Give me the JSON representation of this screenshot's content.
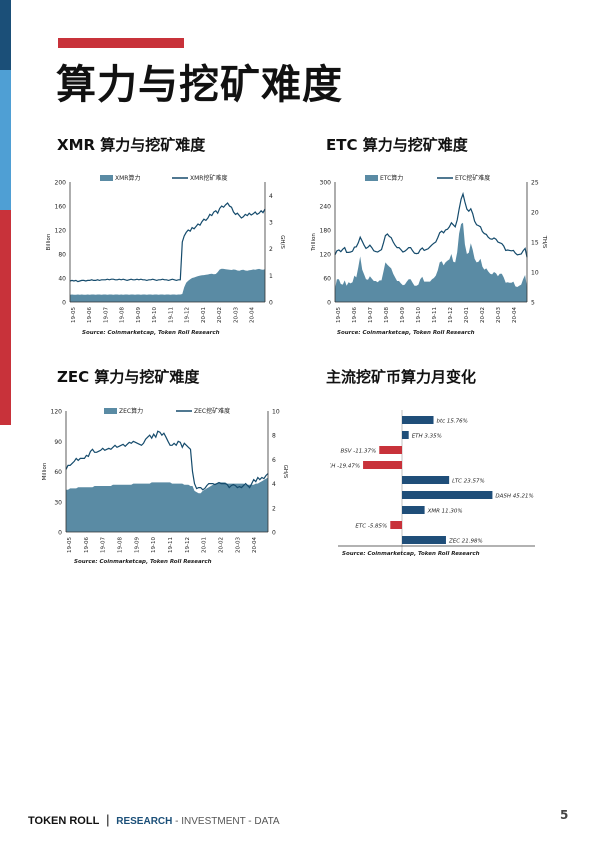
{
  "page": {
    "title": "算力与挖矿难度",
    "page_number": "5"
  },
  "colors": {
    "accent_red": "#c8323a",
    "side_navy": "#1b4f78",
    "side_blue": "#4f9fd4",
    "fill": "#5a8ba4",
    "line": "#154b6c"
  },
  "footer": {
    "brand": "TOKEN ROLL",
    "divider": "|",
    "research": "RESEARCH",
    "rest": " - INVESTMENT - DATA"
  },
  "chart_data": [
    {
      "id": "xmr",
      "type": "area",
      "title": "XMR 算力与挖矿难度",
      "ylabel": "Billion",
      "y2label": "GH/S",
      "ylim": [
        0,
        200
      ],
      "yticks": [
        0,
        40,
        80,
        120,
        160,
        200
      ],
      "y2lim": [
        0,
        4.5
      ],
      "y2ticks": [
        0,
        1,
        2,
        3,
        4
      ],
      "xticks": [
        "19-05",
        "19-06",
        "19-07",
        "19-08",
        "19-09",
        "19-10",
        "19-11",
        "19-12",
        "20-01",
        "20-02",
        "20-03",
        "20-04"
      ],
      "series": [
        {
          "name": "XMR算力",
          "type": "area",
          "axis": "right",
          "values": [
            0.27,
            0.28,
            0.27,
            0.27,
            0.28,
            0.27,
            0.28,
            0.27,
            0.27,
            0.28,
            0.27,
            0.28,
            0.28,
            0.27,
            0.28,
            0.28,
            0.27,
            0.28,
            0.28,
            0.27,
            0.28,
            0.28,
            0.27,
            0.28,
            0.28,
            0.27,
            0.28,
            0.27,
            0.28,
            0.28,
            0.27,
            0.28,
            0.28,
            0.27,
            0.28,
            0.28,
            0.27,
            0.28,
            0.28,
            0.27,
            0.28,
            0.28,
            0.27,
            0.28,
            0.28,
            0.27,
            0.28,
            0.28,
            0.27,
            0.28,
            0.28,
            0.27,
            0.28,
            0.28,
            0.27,
            0.28,
            0.28,
            0.3,
            0.55,
            0.72,
            0.8,
            0.85,
            0.9,
            0.92,
            0.95,
            0.97,
            0.99,
            1.0,
            1.01,
            1.02,
            1.03,
            1.05,
            1.06,
            1.04,
            1.05,
            1.12,
            1.22,
            1.25,
            1.24,
            1.23,
            1.22,
            1.21,
            1.2,
            1.22,
            1.21,
            1.18,
            1.17,
            1.2,
            1.21,
            1.18,
            1.17,
            1.19,
            1.2,
            1.22,
            1.21,
            1.23,
            1.24,
            1.22,
            1.21,
            1.23
          ]
        },
        {
          "name": "XMR挖矿难度",
          "type": "line",
          "axis": "left",
          "values": [
            35,
            36,
            35,
            36,
            34,
            35,
            36,
            36,
            35,
            36,
            36,
            37,
            36,
            36,
            37,
            36,
            37,
            37,
            37,
            38,
            37,
            38,
            38,
            37,
            37,
            38,
            37,
            38,
            37,
            36,
            37,
            38,
            37,
            37,
            38,
            37,
            38,
            37,
            37,
            36,
            37,
            37,
            38,
            37,
            36,
            37,
            37,
            38,
            37,
            37,
            36,
            37,
            38,
            37,
            36,
            37,
            37,
            100,
            110,
            116,
            120,
            118,
            124,
            122,
            126,
            130,
            128,
            134,
            138,
            136,
            140,
            146,
            144,
            150,
            152,
            148,
            156,
            160,
            158,
            162,
            165,
            160,
            158,
            150,
            146,
            148,
            144,
            140,
            142,
            146,
            144,
            148,
            145,
            147,
            150,
            146,
            148,
            152,
            149,
            155
          ]
        }
      ]
    },
    {
      "id": "etc",
      "type": "area",
      "title": "ETC 算力与挖矿难度",
      "ylabel": "Trillion",
      "y2label": "TH/S",
      "ylim": [
        0,
        300
      ],
      "yticks": [
        0,
        60,
        120,
        180,
        240,
        300
      ],
      "y2lim": [
        5,
        25
      ],
      "y2ticks": [
        5,
        10,
        15,
        20,
        25
      ],
      "xticks": [
        "19-05",
        "19-06",
        "19-07",
        "19-08",
        "19-09",
        "19-10",
        "19-11",
        "19-12",
        "20-01",
        "20-02",
        "20-03",
        "20-04"
      ],
      "series": [
        {
          "name": "ETC算力",
          "type": "area",
          "axis": "right",
          "values": [
            7.2,
            8.8,
            8.8,
            8.0,
            7.9,
            8.6,
            7.7,
            8.3,
            8.1,
            8.3,
            9.4,
            9.1,
            10.8,
            12.6,
            10.4,
            9.6,
            8.8,
            8.7,
            9.3,
            8.9,
            8.5,
            8.5,
            8.3,
            8.6,
            8.6,
            10.1,
            11.6,
            11.2,
            10.9,
            10.6,
            9.7,
            9.1,
            8.5,
            8.5,
            8.1,
            7.8,
            7.9,
            8.4,
            8.8,
            8.8,
            8.2,
            7.7,
            7.7,
            7.9,
            8.8,
            9.2,
            8.4,
            8.4,
            8.4,
            8.4,
            8.8,
            9.0,
            9.4,
            10.3,
            11.6,
            11.8,
            11.1,
            11.6,
            11.9,
            12.1,
            13.0,
            11.7,
            11.6,
            13.3,
            16.4,
            18.0,
            18.2,
            14.6,
            13.0,
            13.2,
            14.8,
            13.7,
            12.2,
            11.6,
            11.7,
            12.2,
            10.9,
            10.4,
            10.6,
            10.1,
            9.7,
            9.6,
            10.0,
            9.8,
            9.3,
            9.7,
            9.7,
            9.1,
            8.2,
            8.3,
            8.2,
            8.2,
            8.4,
            7.6,
            7.5,
            7.7,
            7.9,
            8.8,
            9.5,
            7.5
          ]
        },
        {
          "name": "ETC挖矿难度",
          "type": "line",
          "axis": "left",
          "values": [
            118,
            128,
            130,
            126,
            132,
            136,
            124,
            124,
            125,
            127,
            137,
            138,
            148,
            162,
            152,
            142,
            134,
            137,
            142,
            136,
            128,
            126,
            125,
            128,
            131,
            148,
            166,
            170,
            164,
            161,
            150,
            142,
            136,
            136,
            131,
            125,
            127,
            131,
            136,
            136,
            128,
            122,
            121,
            122,
            131,
            135,
            129,
            131,
            133,
            138,
            143,
            147,
            150,
            161,
            173,
            177,
            173,
            180,
            182,
            188,
            198,
            193,
            188,
            205,
            232,
            257,
            270,
            250,
            232,
            227,
            233,
            221,
            202,
            193,
            191,
            188,
            176,
            171,
            169,
            162,
            158,
            157,
            160,
            157,
            150,
            148,
            146,
            140,
            129,
            130,
            129,
            128,
            129,
            122,
            118,
            119,
            120,
            128,
            134,
            112
          ]
        }
      ]
    },
    {
      "id": "zec",
      "type": "area",
      "title": "ZEC 算力与挖矿难度",
      "ylabel": "Million",
      "y2label": "GH/S",
      "ylim": [
        0,
        120
      ],
      "yticks": [
        0,
        30,
        60,
        90,
        120
      ],
      "y2lim": [
        0,
        10
      ],
      "y2ticks": [
        0,
        2,
        4,
        6,
        8,
        10
      ],
      "xticks": [
        "19-05",
        "19-06",
        "19-07",
        "19-08",
        "19-09",
        "19-10",
        "19-11",
        "19-12",
        "20-01",
        "20-02",
        "20-03",
        "20-04"
      ],
      "series": [
        {
          "name": "ZEC算力",
          "type": "area",
          "axis": "right",
          "values": [
            3.5,
            3.5,
            3.6,
            3.6,
            3.6,
            3.6,
            3.7,
            3.7,
            3.7,
            3.7,
            3.7,
            3.7,
            3.7,
            3.7,
            3.8,
            3.8,
            3.8,
            3.8,
            3.8,
            3.8,
            3.8,
            3.8,
            3.8,
            3.9,
            3.9,
            3.9,
            3.9,
            3.9,
            3.9,
            3.9,
            3.9,
            3.9,
            3.9,
            4.0,
            4.0,
            4.0,
            4.0,
            4.0,
            4.0,
            4.0,
            4.0,
            4.0,
            4.1,
            4.1,
            4.1,
            4.1,
            4.1,
            4.1,
            4.1,
            4.1,
            4.1,
            4.1,
            4.0,
            4.0,
            4.0,
            4.0,
            4.0,
            4.0,
            3.9,
            3.9,
            3.9,
            3.8,
            3.8,
            3.4,
            3.3,
            3.2,
            3.2,
            3.4,
            3.5,
            3.6,
            3.7,
            3.8,
            3.9,
            4.0,
            4.0,
            4.1,
            4.1,
            4.1,
            4.1,
            4.0,
            4.0,
            4.0,
            4.0,
            4.0,
            4.0,
            4.0,
            4.0,
            4.0,
            3.9,
            3.9,
            3.9,
            3.9,
            3.9,
            4.0,
            4.0,
            4.1,
            4.2,
            4.3,
            4.4,
            4.5
          ]
        },
        {
          "name": "ZEC挖矿难度",
          "type": "line",
          "axis": "left",
          "values": [
            62,
            66,
            66,
            68,
            70,
            73,
            71,
            73,
            73,
            73,
            76,
            75,
            80,
            82,
            79,
            79,
            80,
            81,
            83,
            81,
            82,
            83,
            82,
            84,
            86,
            84,
            85,
            86,
            87,
            85,
            87,
            89,
            88,
            90,
            89,
            88,
            87,
            86,
            88,
            92,
            94,
            96,
            93,
            97,
            94,
            100,
            99,
            96,
            98,
            94,
            90,
            86,
            86,
            88,
            86,
            90,
            89,
            84,
            88,
            86,
            84,
            82,
            60,
            48,
            43,
            44,
            44,
            42,
            43,
            46,
            48,
            48,
            48,
            47,
            48,
            49,
            48,
            48,
            48,
            47,
            44,
            46,
            47,
            46,
            44,
            45,
            44,
            46,
            48,
            46,
            44,
            48,
            52,
            50,
            54,
            52,
            54,
            53,
            56,
            58
          ]
        }
      ]
    },
    {
      "id": "monthly",
      "type": "bar",
      "title": "主流挖矿币算力月变化",
      "categories": [
        "btc",
        "ETH",
        "BSV",
        "BCH",
        "LTC",
        "DASH",
        "XMR",
        "ETC",
        "ZEC"
      ],
      "values": [
        15.76,
        3.35,
        -11.37,
        -19.47,
        23.57,
        45.21,
        11.3,
        -5.85,
        21.98
      ],
      "labels": [
        "btc 15.76%",
        "ETH 3.35%",
        "BSV -11.37%",
        "BCH -19.47%",
        "LTC 23.57%",
        "DASH 45.21%",
        "XMR 11.30%",
        "ETC -5.85%",
        "ZEC 21.98%"
      ],
      "colors": {
        "positive": "#1f4e79",
        "negative": "#c8323a"
      }
    }
  ],
  "sources": {
    "xmr": "Source: Coinmarketcap, Token Roll Research",
    "etc": "Source: Coinmarketcap, Token Roll Research",
    "zec": "Source: Coinmarketcap, Token Roll Research",
    "monthly": "Source: Coinmarketcap, Token Roll Research"
  }
}
